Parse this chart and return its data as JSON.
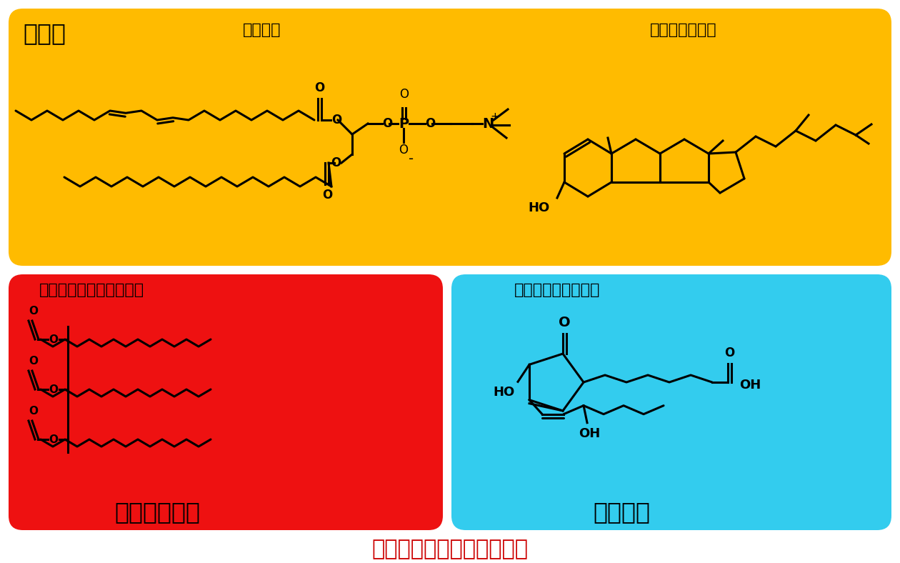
{
  "bg_color": "#ffffff",
  "yellow_color": "#FFBB00",
  "red_color": "#EE1111",
  "blue_color": "#33CCEE",
  "black_color": "#000000",
  "title_color": "#CC0000",
  "title_text": "構造と機能が密接にリンク",
  "cell_membrane_label": "細胞膜",
  "phospholipid_label": "リン脂質",
  "cholesterol_label": "コレステロール",
  "triacylglycerol_label": "トリアシルグリセロール",
  "energy_label": "エネルギー源",
  "prostaglandin_label": "プロスタグランジン",
  "signal_label": "情報伝達"
}
